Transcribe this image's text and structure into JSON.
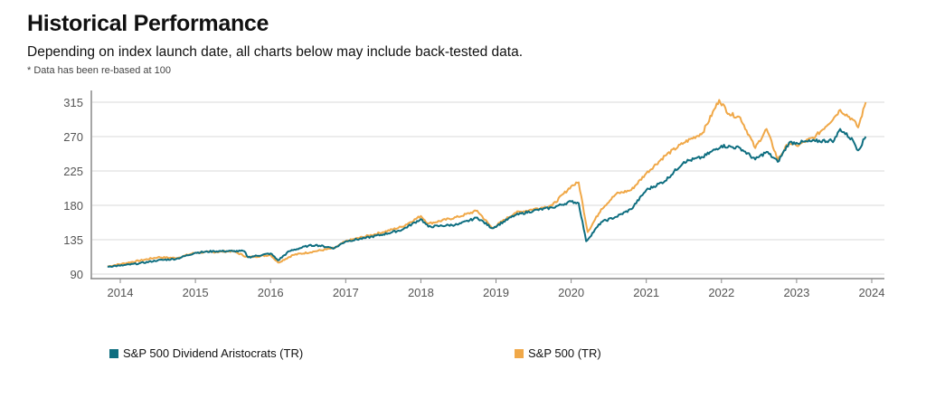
{
  "header": {
    "title": "Historical Performance",
    "subtitle": "Depending on index launch date, all charts below may include back-tested data.",
    "note": "* Data has been re-based at 100"
  },
  "chart_data": {
    "type": "line",
    "title": "",
    "xlabel": "",
    "ylabel": "",
    "ylim": [
      90,
      315
    ],
    "xlim": [
      2013.83,
      2023.92
    ],
    "yticks": [
      "90",
      "135",
      "180",
      "225",
      "270",
      "315"
    ],
    "xticks": [
      "2014",
      "2015",
      "2016",
      "2017",
      "2018",
      "2019",
      "2020",
      "2021",
      "2022",
      "2023",
      "2024"
    ],
    "grid": "horizontal",
    "legend_position": "bottom",
    "series": [
      {
        "name": "S&P 500 Dividend Aristocrats (TR)",
        "color": "#0e6e80",
        "x": [
          2013.83,
          2014.0,
          2014.25,
          2014.5,
          2014.75,
          2015.0,
          2015.25,
          2015.5,
          2015.65,
          2015.7,
          2016.0,
          2016.1,
          2016.25,
          2016.5,
          2016.6,
          2016.85,
          2017.0,
          2017.25,
          2017.5,
          2017.75,
          2018.0,
          2018.1,
          2018.25,
          2018.5,
          2018.75,
          2018.95,
          2019.25,
          2019.5,
          2019.75,
          2020.0,
          2020.1,
          2020.2,
          2020.4,
          2020.6,
          2020.8,
          2021.0,
          2021.25,
          2021.5,
          2021.75,
          2022.0,
          2022.25,
          2022.45,
          2022.6,
          2022.75,
          2022.9,
          2023.0,
          2023.25,
          2023.5,
          2023.58,
          2023.75,
          2023.82,
          2023.92
        ],
        "y": [
          100,
          101,
          104,
          108,
          110,
          118,
          120,
          120,
          120,
          112,
          117,
          108,
          120,
          127,
          128,
          124,
          133,
          137,
          142,
          148,
          162,
          152,
          153,
          155,
          164,
          150,
          167,
          173,
          177,
          185,
          183,
          133,
          158,
          165,
          175,
          200,
          212,
          237,
          243,
          258,
          255,
          240,
          250,
          237,
          262,
          262,
          264,
          265,
          280,
          265,
          252,
          270
        ]
      },
      {
        "name": "S&P 500 (TR)",
        "color": "#f0a848",
        "x": [
          2013.83,
          2014.5,
          2014.75,
          2015.0,
          2015.5,
          2015.7,
          2016.0,
          2016.1,
          2016.3,
          2016.6,
          2016.85,
          2017.0,
          2017.5,
          2017.75,
          2018.0,
          2018.1,
          2018.5,
          2018.75,
          2018.95,
          2019.25,
          2019.5,
          2019.75,
          2020.0,
          2020.1,
          2020.22,
          2020.4,
          2020.6,
          2020.8,
          2021.0,
          2021.25,
          2021.5,
          2021.75,
          2021.97,
          2022.1,
          2022.25,
          2022.45,
          2022.6,
          2022.75,
          2022.9,
          2023.0,
          2023.25,
          2023.5,
          2023.58,
          2023.75,
          2023.82,
          2023.92
        ],
        "y": [
          100,
          112,
          111,
          118,
          120,
          112,
          115,
          105,
          115,
          120,
          124,
          133,
          145,
          152,
          166,
          156,
          165,
          173,
          150,
          170,
          175,
          180,
          205,
          210,
          145,
          175,
          195,
          200,
          222,
          245,
          262,
          275,
          318,
          300,
          295,
          255,
          280,
          240,
          262,
          258,
          270,
          295,
          305,
          292,
          282,
          315
        ]
      }
    ]
  }
}
